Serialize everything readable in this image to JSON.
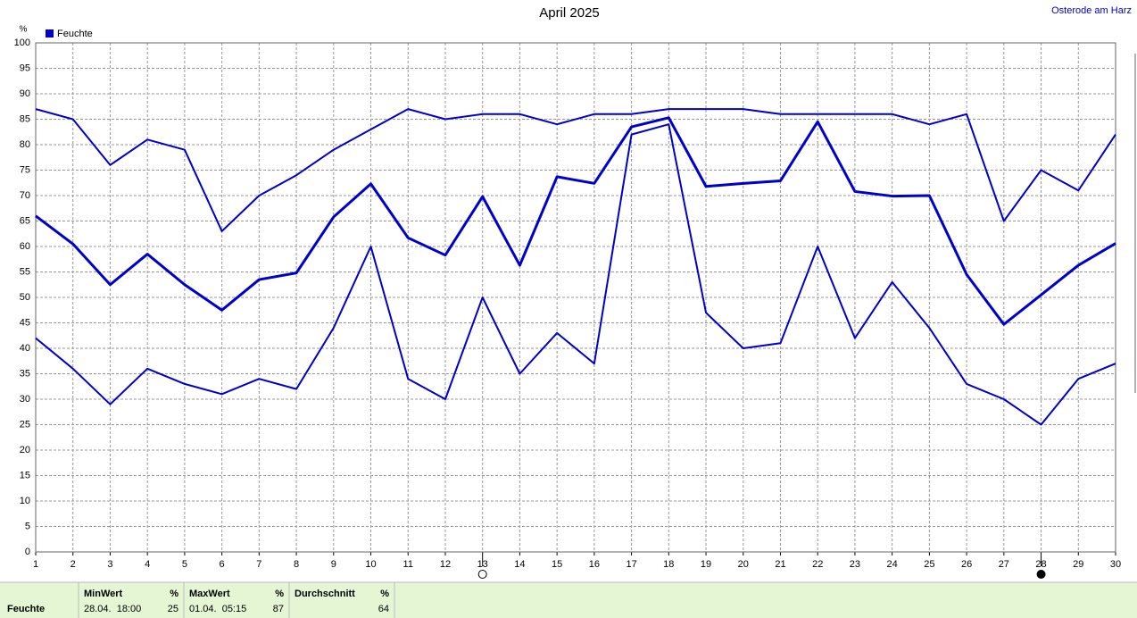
{
  "chart_data": {
    "type": "line",
    "title": "April 2025",
    "subtitle": "Osterode am Harz",
    "y_label": "%",
    "legend": "Feuchte",
    "x": [
      1,
      2,
      3,
      4,
      5,
      6,
      7,
      8,
      9,
      10,
      11,
      12,
      13,
      14,
      15,
      16,
      17,
      18,
      19,
      20,
      21,
      22,
      23,
      24,
      25,
      26,
      27,
      28,
      29,
      30
    ],
    "xlim": [
      1,
      30
    ],
    "xticks": [
      1,
      2,
      3,
      4,
      5,
      6,
      7,
      8,
      9,
      10,
      11,
      12,
      13,
      14,
      15,
      16,
      17,
      18,
      19,
      20,
      21,
      22,
      23,
      24,
      25,
      26,
      27,
      28,
      29,
      30
    ],
    "ylim": [
      0,
      100
    ],
    "yticks": [
      0,
      5,
      10,
      15,
      20,
      25,
      30,
      35,
      40,
      45,
      50,
      55,
      60,
      65,
      70,
      75,
      80,
      85,
      90,
      95,
      100
    ],
    "grid": true,
    "series": [
      {
        "color": "#0000cc",
        "line_width": 2,
        "values": [
          87,
          85,
          76,
          81,
          79,
          63,
          70,
          74,
          79,
          83,
          87,
          85,
          86,
          86,
          84,
          86,
          86,
          87,
          87,
          87,
          86,
          86,
          86,
          86,
          84,
          86,
          65,
          75,
          71,
          82
        ]
      },
      {
        "color": "#0000cc",
        "line_width": 3,
        "values": [
          66,
          60.5,
          52.5,
          58.5,
          52.5,
          47.5,
          53.5,
          54.8,
          65.8,
          72.3,
          61.7,
          58.3,
          69.8,
          56.3,
          73.7,
          72.4,
          83.5,
          85.3,
          71.8,
          72.4,
          72.9,
          84.5,
          70.8,
          69.9,
          70,
          54.5,
          44.7,
          50.5,
          56.3,
          60.6
        ]
      },
      {
        "color": "#0000cc",
        "line_width": 2,
        "values": [
          42,
          36,
          29,
          36,
          33,
          31,
          34,
          32,
          44,
          60,
          34,
          30,
          50,
          35,
          43,
          37,
          82,
          84,
          47,
          40,
          41,
          60,
          42,
          53,
          44,
          33,
          30,
          25,
          34,
          37
        ]
      }
    ],
    "markers": [
      {
        "x": 13,
        "style": "open"
      },
      {
        "x": 28,
        "style": "filled"
      }
    ]
  },
  "summary": {
    "row_label": "Feuchte",
    "columns": [
      {
        "header": "MinWert",
        "unit": "%",
        "time": "28.04.  18:00",
        "value": 25
      },
      {
        "header": "MaxWert",
        "unit": "%",
        "time": "01.04.  05:15",
        "value": 87
      },
      {
        "header": "Durchschnitt",
        "unit": "%",
        "value": 64
      }
    ]
  }
}
